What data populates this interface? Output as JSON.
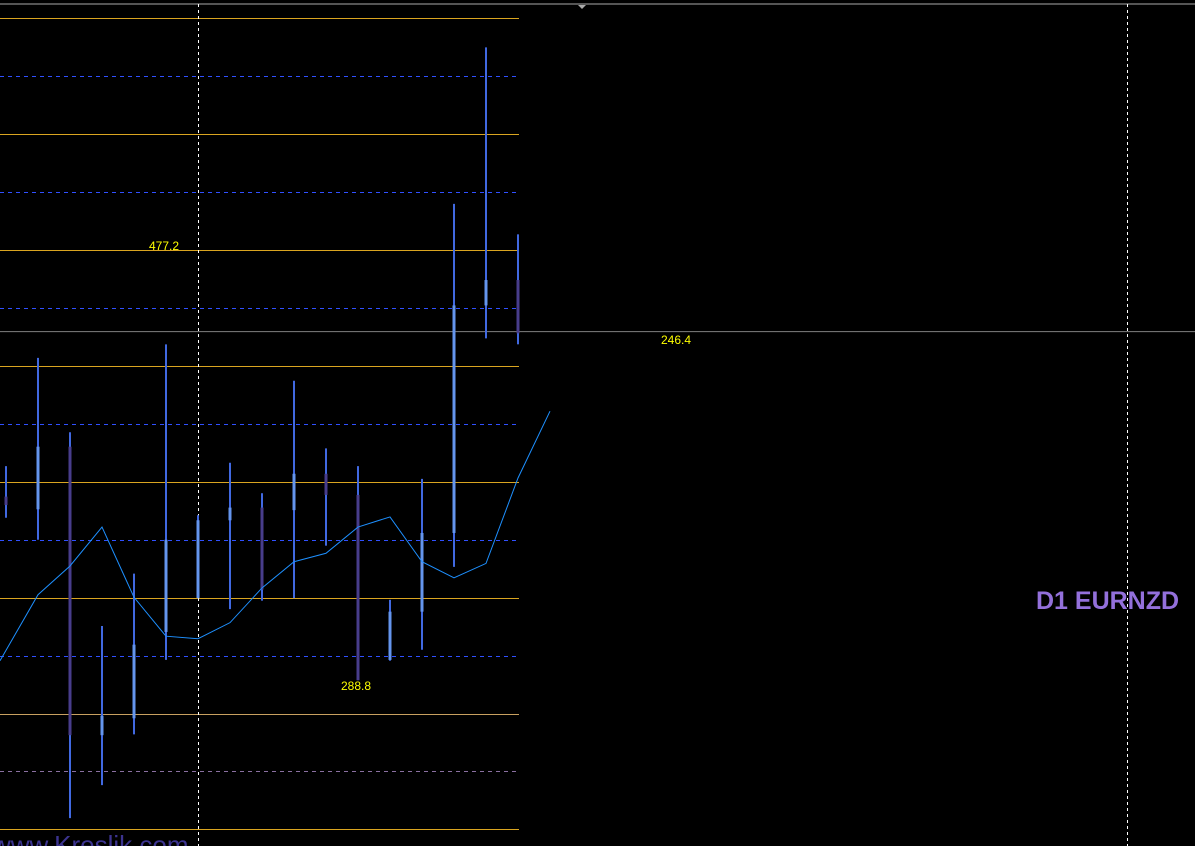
{
  "chart_data": {
    "type": "candlestick",
    "title": "",
    "symbol_label": "D1 EURNZD",
    "watermark": "www.Kreslik.com",
    "price_labels": [
      "477.2",
      "246.4",
      "288.8"
    ],
    "candles": [
      {
        "o": 41.3,
        "h": 44.9,
        "l": 38.8,
        "c": 40.3
      },
      {
        "o": 39.8,
        "h": 57.7,
        "l": 36.2,
        "c": 47.2
      },
      {
        "o": 47.2,
        "h": 48.9,
        "l": 3.3,
        "c": 13.1
      },
      {
        "o": 13.1,
        "h": 26.0,
        "l": 7.2,
        "c": 15.4
      },
      {
        "o": 15.1,
        "h": 32.2,
        "l": 13.2,
        "c": 23.8
      },
      {
        "o": 25.3,
        "h": 59.3,
        "l": 22.0,
        "c": 36.2
      },
      {
        "o": 29.3,
        "h": 39.1,
        "l": 29.3,
        "c": 38.5
      },
      {
        "o": 38.5,
        "h": 45.3,
        "l": 28.0,
        "c": 40.0
      },
      {
        "o": 40.0,
        "h": 41.7,
        "l": 29.0,
        "c": 30.3
      },
      {
        "o": 39.7,
        "h": 55.0,
        "l": 29.3,
        "c": 44.0
      },
      {
        "o": 44.0,
        "h": 47.0,
        "l": 35.5,
        "c": 41.5
      },
      {
        "o": 41.5,
        "h": 44.9,
        "l": 19.6,
        "c": 19.6
      },
      {
        "o": 22.0,
        "h": 29.1,
        "l": 21.9,
        "c": 27.7
      },
      {
        "o": 27.7,
        "h": 43.4,
        "l": 23.2,
        "c": 37.0
      },
      {
        "o": 37.0,
        "h": 75.9,
        "l": 33.0,
        "c": 63.9
      },
      {
        "o": 63.9,
        "h": 94.4,
        "l": 60.0,
        "c": 66.9
      },
      {
        "o": 66.9,
        "h": 72.3,
        "l": 59.3,
        "c": 60.6
      }
    ],
    "moving_average": [
      21.9,
      29.7,
      33.1,
      37.7,
      29.4,
      24.8,
      24.5,
      26.4,
      30.5,
      33.6,
      34.6,
      37.7,
      38.9,
      33.6,
      31.7,
      33.4,
      43.5,
      51.4
    ],
    "current_price_line": 60.8,
    "colors": {
      "background": "#000000",
      "wick": "#4169e1",
      "bull_body": "#6495ed",
      "bear_body": "#483d8b",
      "ma": "#1e90ff",
      "level_solid": "#daa520",
      "level_dashed": "#3050ff",
      "price_line": "#808080",
      "label": "#ffff00",
      "symbol": "#9370db"
    }
  }
}
